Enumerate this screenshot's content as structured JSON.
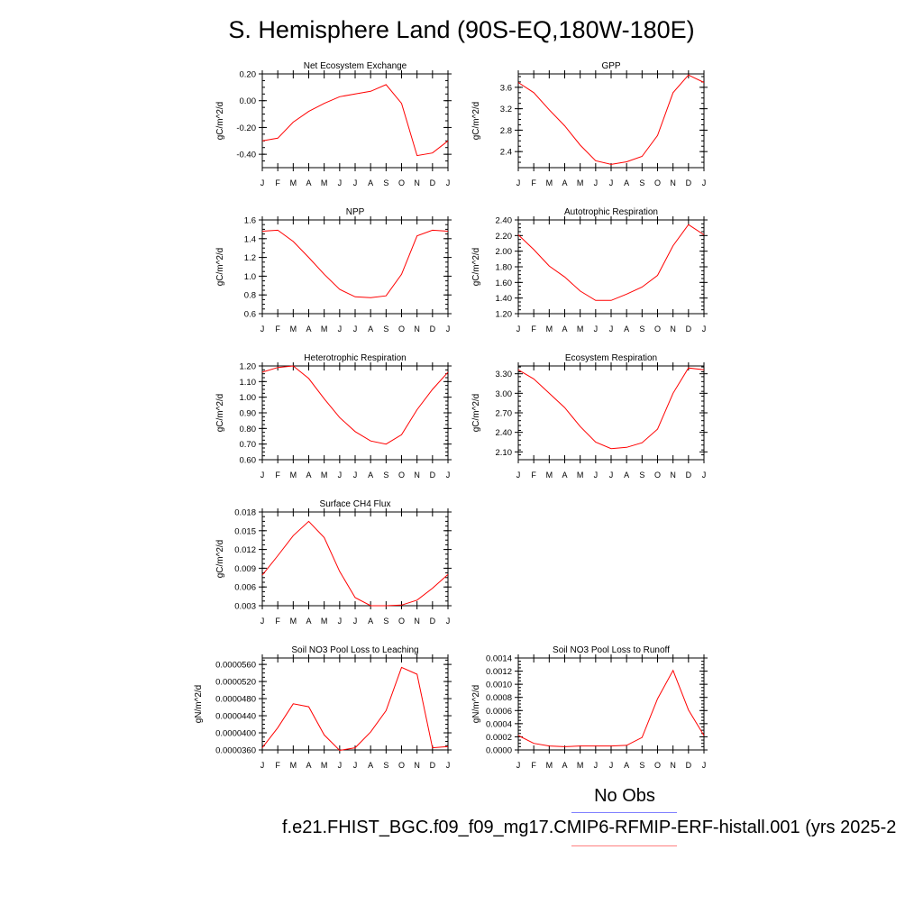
{
  "page": {
    "title": "S. Hemisphere Land (90S-EQ,180W-180E)",
    "legend_label": "No Obs",
    "case_label": "f.e21.FHIST_BGC.f09_f09_mg17.CMIP6-RFMIP-ERF-histall.001 (yrs 2025-2",
    "legend_colors": {
      "obs": "#8080ff",
      "case": "#ff8080"
    }
  },
  "chart_data": [
    {
      "type": "line",
      "title": "Net Ecosystem Exchange",
      "ylabel": "gC/m^2/d",
      "categories": [
        "J",
        "F",
        "M",
        "A",
        "M",
        "J",
        "J",
        "A",
        "S",
        "O",
        "N",
        "D",
        "J"
      ],
      "yticks": [
        "0.20",
        "0.00",
        "-0.20",
        "-0.40"
      ],
      "ytick_values": [
        0.2,
        0.0,
        -0.2,
        -0.4
      ],
      "ylim": [
        -0.5,
        0.2
      ],
      "series": [
        {
          "color": "#ff0000",
          "values": [
            -0.3,
            -0.28,
            -0.16,
            -0.08,
            -0.02,
            0.03,
            0.05,
            0.07,
            0.12,
            -0.02,
            -0.41,
            -0.39,
            -0.3
          ]
        }
      ]
    },
    {
      "type": "line",
      "title": "GPP",
      "ylabel": "gC/m^2/d",
      "categories": [
        "J",
        "F",
        "M",
        "A",
        "M",
        "J",
        "J",
        "A",
        "S",
        "O",
        "N",
        "D",
        "J"
      ],
      "yticks": [
        "3.6",
        "3.2",
        "2.8",
        "2.4"
      ],
      "ytick_values": [
        3.6,
        3.2,
        2.8,
        2.4
      ],
      "ylim": [
        2.1,
        3.85
      ],
      "series": [
        {
          "color": "#ff0000",
          "values": [
            3.69,
            3.5,
            3.18,
            2.88,
            2.52,
            2.23,
            2.16,
            2.21,
            2.31,
            2.7,
            3.5,
            3.83,
            3.69
          ]
        }
      ]
    },
    {
      "type": "line",
      "title": "NPP",
      "ylabel": "gC/m^2/d",
      "categories": [
        "J",
        "F",
        "M",
        "A",
        "M",
        "J",
        "J",
        "A",
        "S",
        "O",
        "N",
        "D",
        "J"
      ],
      "yticks": [
        "1.6",
        "1.4",
        "1.2",
        "1.0",
        "0.8",
        "0.6"
      ],
      "ytick_values": [
        1.6,
        1.4,
        1.2,
        1.0,
        0.8,
        0.6
      ],
      "ylim": [
        0.6,
        1.6
      ],
      "series": [
        {
          "color": "#ff0000",
          "values": [
            1.48,
            1.49,
            1.37,
            1.2,
            1.02,
            0.86,
            0.78,
            0.77,
            0.79,
            1.02,
            1.43,
            1.49,
            1.48
          ]
        }
      ]
    },
    {
      "type": "line",
      "title": "Autotrophic Respiration",
      "ylabel": "gC/m^2/d",
      "categories": [
        "J",
        "F",
        "M",
        "A",
        "M",
        "J",
        "J",
        "A",
        "S",
        "O",
        "N",
        "D",
        "J"
      ],
      "yticks": [
        "2.40",
        "2.20",
        "2.00",
        "1.80",
        "1.60",
        "1.40",
        "1.20"
      ],
      "ytick_values": [
        2.4,
        2.2,
        2.0,
        1.8,
        1.6,
        1.4,
        1.2
      ],
      "ylim": [
        1.2,
        2.4
      ],
      "series": [
        {
          "color": "#ff0000",
          "values": [
            2.21,
            2.02,
            1.81,
            1.67,
            1.49,
            1.37,
            1.37,
            1.45,
            1.54,
            1.69,
            2.07,
            2.34,
            2.21
          ]
        }
      ]
    },
    {
      "type": "line",
      "title": "Heterotrophic Respiration",
      "ylabel": "gC/m^2/d",
      "categories": [
        "J",
        "F",
        "M",
        "A",
        "M",
        "J",
        "J",
        "A",
        "S",
        "O",
        "N",
        "D",
        "J"
      ],
      "yticks": [
        "1.20",
        "1.10",
        "1.00",
        "0.90",
        "0.80",
        "0.70",
        "0.60"
      ],
      "ytick_values": [
        1.2,
        1.1,
        1.0,
        0.9,
        0.8,
        0.7,
        0.6
      ],
      "ylim": [
        0.6,
        1.2
      ],
      "series": [
        {
          "color": "#ff0000",
          "values": [
            1.16,
            1.19,
            1.2,
            1.12,
            0.99,
            0.87,
            0.78,
            0.72,
            0.7,
            0.76,
            0.92,
            1.05,
            1.16
          ]
        }
      ]
    },
    {
      "type": "line",
      "title": "Ecosystem Respiration",
      "ylabel": "gC/m^2/d",
      "categories": [
        "J",
        "F",
        "M",
        "A",
        "M",
        "J",
        "J",
        "A",
        "S",
        "O",
        "N",
        "D",
        "J"
      ],
      "yticks": [
        "3.30",
        "3.00",
        "2.70",
        "2.40",
        "2.10"
      ],
      "ytick_values": [
        3.3,
        3.0,
        2.7,
        2.4,
        2.1
      ],
      "ylim": [
        1.98,
        3.42
      ],
      "series": [
        {
          "color": "#ff0000",
          "values": [
            3.36,
            3.22,
            3.0,
            2.78,
            2.49,
            2.25,
            2.15,
            2.17,
            2.24,
            2.45,
            3.0,
            3.39,
            3.36
          ]
        }
      ]
    },
    {
      "type": "line",
      "title": "Surface CH4 Flux",
      "ylabel": "gC/m^2/d",
      "categories": [
        "J",
        "F",
        "M",
        "A",
        "M",
        "J",
        "J",
        "A",
        "S",
        "O",
        "N",
        "D",
        "J"
      ],
      "yticks": [
        "0.018",
        "0.015",
        "0.012",
        "0.009",
        "0.006",
        "0.003"
      ],
      "ytick_values": [
        0.018,
        0.015,
        0.012,
        0.009,
        0.006,
        0.003
      ],
      "ylim": [
        0.003,
        0.018
      ],
      "series": [
        {
          "color": "#ff0000",
          "values": [
            0.0079,
            0.011,
            0.0142,
            0.0165,
            0.0139,
            0.0085,
            0.0043,
            0.003,
            0.003,
            0.0031,
            0.0039,
            0.0058,
            0.008
          ]
        }
      ]
    },
    {
      "type": "line",
      "title": "Soil NO3 Pool Loss to Leaching",
      "ylabel": "gN/m^2/d",
      "categories": [
        "J",
        "F",
        "M",
        "A",
        "M",
        "J",
        "J",
        "A",
        "S",
        "O",
        "N",
        "D",
        "J"
      ],
      "yticks": [
        "0.0000560",
        "0.0000520",
        "0.0000480",
        "0.0000440",
        "0.0000400",
        "0.0000360"
      ],
      "ytick_values": [
        5.6e-05,
        5.2e-05,
        4.8e-05,
        4.4e-05,
        4e-05,
        3.6e-05
      ],
      "ylim": [
        3.6e-05,
        5.75e-05
      ],
      "series": [
        {
          "color": "#ff0000",
          "values": [
            3.65e-05,
            4.12e-05,
            4.68e-05,
            4.61e-05,
            3.95e-05,
            3.59e-05,
            3.65e-05,
            4.02e-05,
            4.52e-05,
            5.53e-05,
            5.37e-05,
            3.65e-05,
            3.68e-05
          ]
        }
      ]
    },
    {
      "type": "line",
      "title": "Soil NO3 Pool Loss to Runoff",
      "ylabel": "gN/m^2/d",
      "categories": [
        "J",
        "F",
        "M",
        "A",
        "M",
        "J",
        "J",
        "A",
        "S",
        "O",
        "N",
        "D",
        "J"
      ],
      "yticks": [
        "0.0014",
        "0.0012",
        "0.0010",
        "0.0008",
        "0.0006",
        "0.0004",
        "0.0002",
        "0.0000"
      ],
      "ytick_values": [
        0.0014,
        0.0012,
        0.001,
        0.0008,
        0.0006,
        0.0004,
        0.0002,
        0.0
      ],
      "ylim": [
        0.0,
        0.0014
      ],
      "series": [
        {
          "color": "#ff0000",
          "values": [
            0.00022,
            0.0001,
            6e-05,
            5e-05,
            6e-05,
            6e-05,
            6e-05,
            7e-05,
            0.00019,
            0.00078,
            0.00121,
            0.00061,
            0.00022
          ]
        }
      ]
    }
  ]
}
